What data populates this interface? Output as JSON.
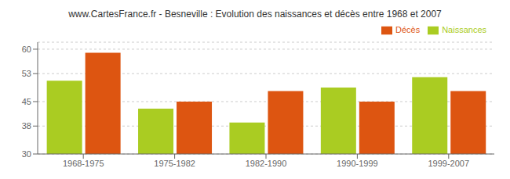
{
  "chart_data": {
    "type": "bar",
    "title": "www.CartesFrance.fr - Besneville : Evolution des naissances et décès entre 1968 et 2007",
    "categories": [
      "1968-1975",
      "1975-1982",
      "1982-1990",
      "1990-1999",
      "1999-2007"
    ],
    "series": [
      {
        "name": "Naissances",
        "color": "#aacc22",
        "values": [
          51,
          43,
          39,
          49,
          52
        ]
      },
      {
        "name": "Décès",
        "color": "#dd5511",
        "values": [
          59,
          45,
          48,
          45,
          48
        ]
      }
    ],
    "ylim": [
      30,
      62
    ],
    "yticks": [
      30,
      38,
      45,
      53,
      60
    ],
    "grid": true,
    "legend": "upper right"
  }
}
